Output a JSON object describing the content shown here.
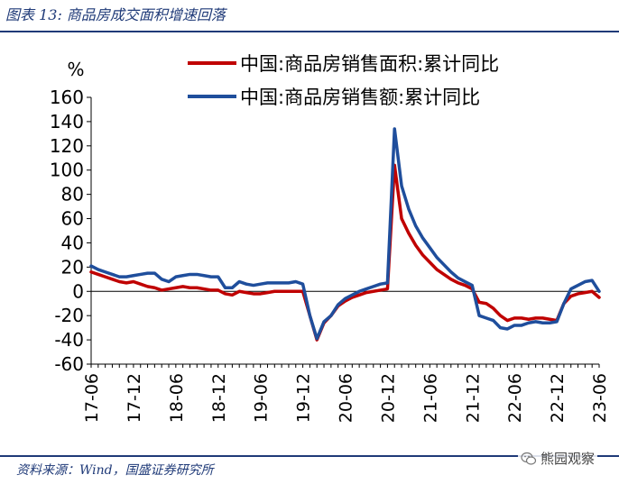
{
  "figure": {
    "title": "图表 13:  商品房成交面积增速回落",
    "source": "资料来源：Wind，国盛证券研究所",
    "watermark": "熊园观察",
    "watermark_icon": "wechat-icon"
  },
  "chart_data": {
    "type": "line",
    "unit_label": "%",
    "ylim": [
      -60,
      160
    ],
    "yticks": [
      -60,
      -40,
      -20,
      0,
      20,
      40,
      60,
      80,
      100,
      120,
      140,
      160
    ],
    "xticks": [
      "17-06",
      "17-12",
      "18-06",
      "18-12",
      "19-06",
      "19-12",
      "20-06",
      "20-12",
      "21-06",
      "21-12",
      "22-06",
      "22-12",
      "23-06"
    ],
    "grid": false,
    "legend_position": "top-right",
    "x": [
      "17-06",
      "17-07",
      "17-08",
      "17-09",
      "17-10",
      "17-11",
      "17-12",
      "18-01",
      "18-02",
      "18-03",
      "18-04",
      "18-05",
      "18-06",
      "18-07",
      "18-08",
      "18-09",
      "18-10",
      "18-11",
      "18-12",
      "19-01",
      "19-02",
      "19-03",
      "19-04",
      "19-05",
      "19-06",
      "19-07",
      "19-08",
      "19-09",
      "19-10",
      "19-11",
      "19-12",
      "20-01",
      "20-02",
      "20-03",
      "20-04",
      "20-05",
      "20-06",
      "20-07",
      "20-08",
      "20-09",
      "20-10",
      "20-11",
      "20-12",
      "21-01",
      "21-02",
      "21-03",
      "21-04",
      "21-05",
      "21-06",
      "21-07",
      "21-08",
      "21-09",
      "21-10",
      "21-11",
      "21-12",
      "22-01",
      "22-02",
      "22-03",
      "22-04",
      "22-05",
      "22-06",
      "22-07",
      "22-08",
      "22-09",
      "22-10",
      "22-11",
      "22-12",
      "23-01",
      "23-02",
      "23-03",
      "23-04",
      "23-05",
      "23-06"
    ],
    "series": [
      {
        "name": "中国:商品房销售面积:累计同比",
        "color": "#c00000",
        "values": [
          16,
          14,
          12,
          10,
          8,
          7,
          8,
          6,
          4,
          3,
          1,
          2,
          3,
          4,
          3,
          3,
          2,
          1,
          1,
          -2,
          -3,
          0,
          -1,
          -2,
          -2,
          -1,
          0,
          0,
          0,
          0,
          0,
          -20,
          -40,
          -26,
          -20,
          -12,
          -8,
          -5,
          -3,
          -1,
          0,
          1,
          2,
          104,
          60,
          48,
          38,
          30,
          24,
          18,
          14,
          10,
          7,
          5,
          2,
          -9,
          -10,
          -14,
          -20,
          -24,
          -22,
          -22,
          -23,
          -22,
          -22,
          -23,
          -24,
          -10,
          -4,
          -2,
          -1,
          0,
          -5
        ]
      },
      {
        "name": "中国:商品房销售额:累计同比",
        "color": "#1f4e9c",
        "values": [
          21,
          18,
          16,
          14,
          12,
          12,
          13,
          14,
          15,
          15,
          10,
          8,
          12,
          13,
          14,
          14,
          13,
          12,
          12,
          3,
          3,
          8,
          6,
          5,
          6,
          7,
          7,
          7,
          7,
          8,
          6,
          -20,
          -39,
          -25,
          -20,
          -11,
          -6,
          -3,
          0,
          2,
          4,
          6,
          7,
          134,
          87,
          68,
          54,
          44,
          36,
          28,
          22,
          16,
          11,
          8,
          5,
          -20,
          -22,
          -24,
          -30,
          -31,
          -28,
          -28,
          -26,
          -25,
          -26,
          -26,
          -25,
          -10,
          2,
          5,
          8,
          9,
          0
        ]
      }
    ]
  }
}
